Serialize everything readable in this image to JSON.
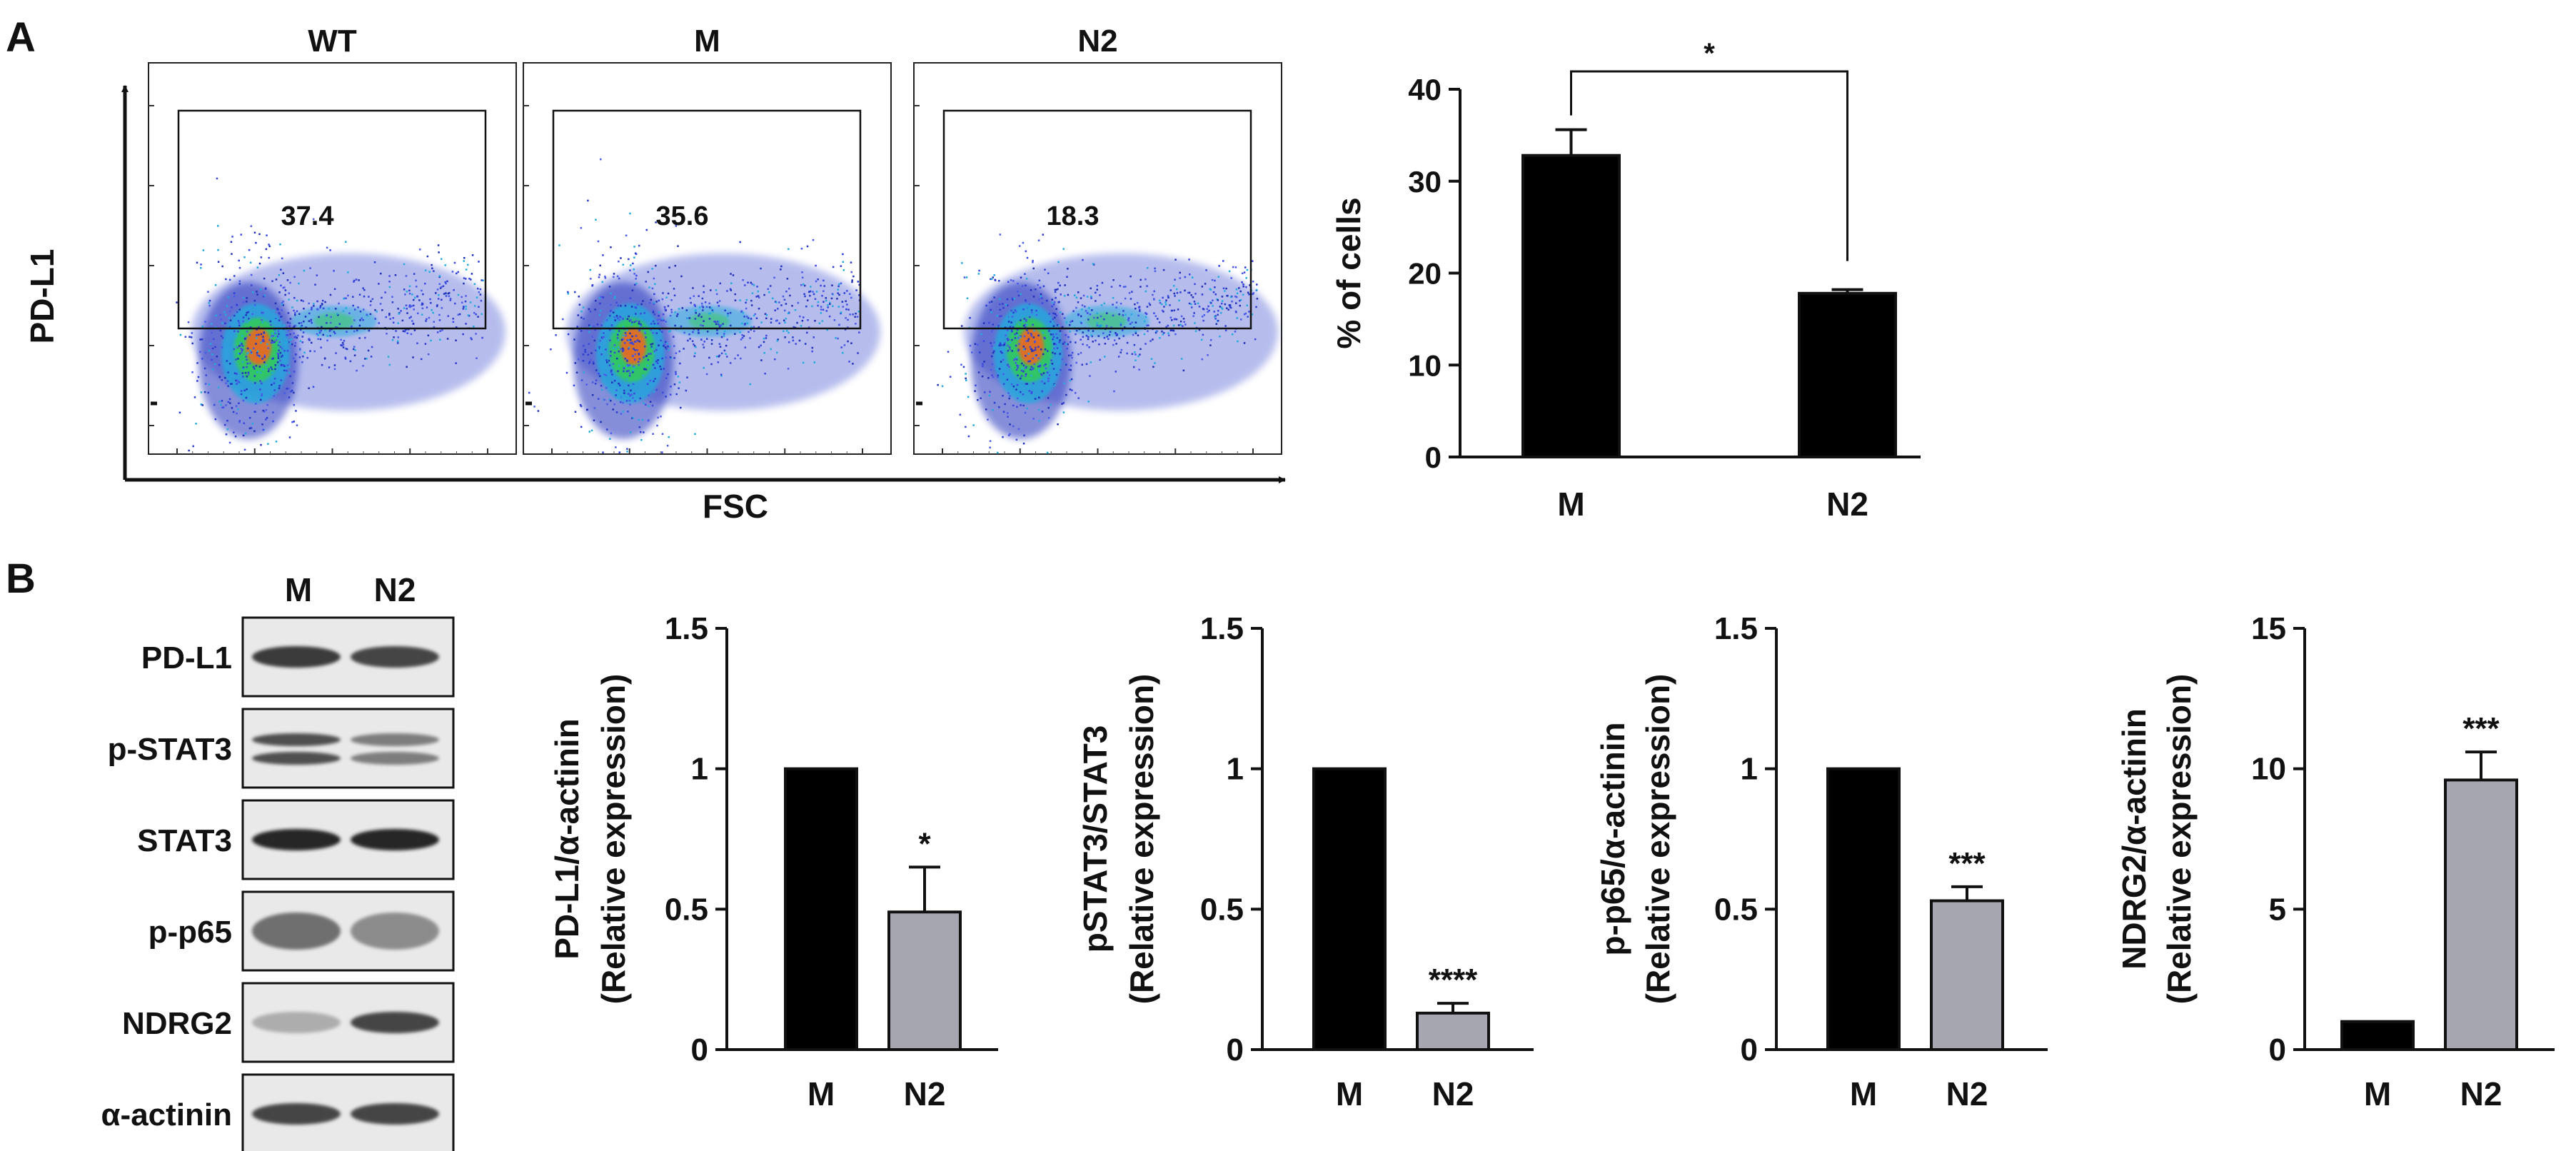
{
  "figure": {
    "panel_a_label": "A",
    "panel_b_label": "B"
  },
  "flow": {
    "y_axis_label": "PD-L1",
    "x_axis_label": "FSC",
    "panels": [
      {
        "title": "WT",
        "gate_percent": "37.4"
      },
      {
        "title": "M",
        "gate_percent": "35.6"
      },
      {
        "title": "N2",
        "gate_percent": "18.3"
      }
    ]
  },
  "western": {
    "lane_labels": [
      "M",
      "N2"
    ],
    "bands": [
      {
        "label": "PD-L1"
      },
      {
        "label": "p-STAT3"
      },
      {
        "label": "STAT3"
      },
      {
        "label": "p-p65"
      },
      {
        "label": "NDRG2"
      },
      {
        "label": "α-actinin"
      }
    ]
  },
  "colors": {
    "control_bar": "#000000",
    "treated_bar": "#a5a6b0",
    "axis": "#111111"
  },
  "chart_data": [
    {
      "id": "cells",
      "type": "bar",
      "title": "",
      "categories": [
        "M",
        "N2"
      ],
      "values": [
        32.8,
        17.8
      ],
      "errors": [
        2.8,
        0.4
      ],
      "ylabel": "% of cells",
      "xlabel": "",
      "ylim": [
        0,
        40
      ],
      "ticks": [
        0,
        10,
        20,
        30,
        40
      ],
      "tick_labels": [
        "0",
        "10",
        "20",
        "30",
        "40"
      ],
      "significance": "*",
      "bar_colors": [
        "#000000",
        "#000000"
      ]
    },
    {
      "id": "pdl1",
      "type": "bar",
      "categories": [
        "M",
        "N2"
      ],
      "values": [
        1.0,
        0.49
      ],
      "errors": [
        0,
        0.16
      ],
      "ylabel": "PD-L1/α-actinin",
      "ylabel2": "(Relative expression)",
      "ylim": [
        0,
        1.5
      ],
      "ticks": [
        0,
        0.5,
        1,
        1.5
      ],
      "tick_labels": [
        "0",
        "0.5",
        "1",
        "1.5"
      ],
      "significance": "*",
      "bar_colors": [
        "#000000",
        "#a5a6b0"
      ]
    },
    {
      "id": "pstat3",
      "type": "bar",
      "categories": [
        "M",
        "N2"
      ],
      "values": [
        1.0,
        0.13
      ],
      "errors": [
        0,
        0.035
      ],
      "ylabel": "pSTAT3/STAT3",
      "ylabel2": "(Relative expression)",
      "ylim": [
        0,
        1.5
      ],
      "ticks": [
        0,
        0.5,
        1,
        1.5
      ],
      "tick_labels": [
        "0",
        "0.5",
        "1",
        "1.5"
      ],
      "significance": "****",
      "bar_colors": [
        "#000000",
        "#a5a6b0"
      ]
    },
    {
      "id": "pp65",
      "type": "bar",
      "categories": [
        "M",
        "N2"
      ],
      "values": [
        1.0,
        0.53
      ],
      "errors": [
        0,
        0.05
      ],
      "ylabel": "p-p65/α-actinin",
      "ylabel2": "(Relative expression)",
      "ylim": [
        0,
        1.5
      ],
      "ticks": [
        0,
        0.5,
        1,
        1.5
      ],
      "tick_labels": [
        "0",
        "0.5",
        "1",
        "1.5"
      ],
      "significance": "***",
      "bar_colors": [
        "#000000",
        "#a5a6b0"
      ]
    },
    {
      "id": "ndrg2",
      "type": "bar",
      "categories": [
        "M",
        "N2"
      ],
      "values": [
        1.0,
        9.6
      ],
      "errors": [
        0,
        1.0
      ],
      "ylabel": "NDRG2/α-actinin",
      "ylabel2": "(Relative expression)",
      "ylim": [
        0,
        15
      ],
      "ticks": [
        0,
        5,
        10,
        15
      ],
      "tick_labels": [
        "0",
        "5",
        "10",
        "15"
      ],
      "significance": "***",
      "bar_colors": [
        "#000000",
        "#a5a6b0"
      ]
    }
  ]
}
